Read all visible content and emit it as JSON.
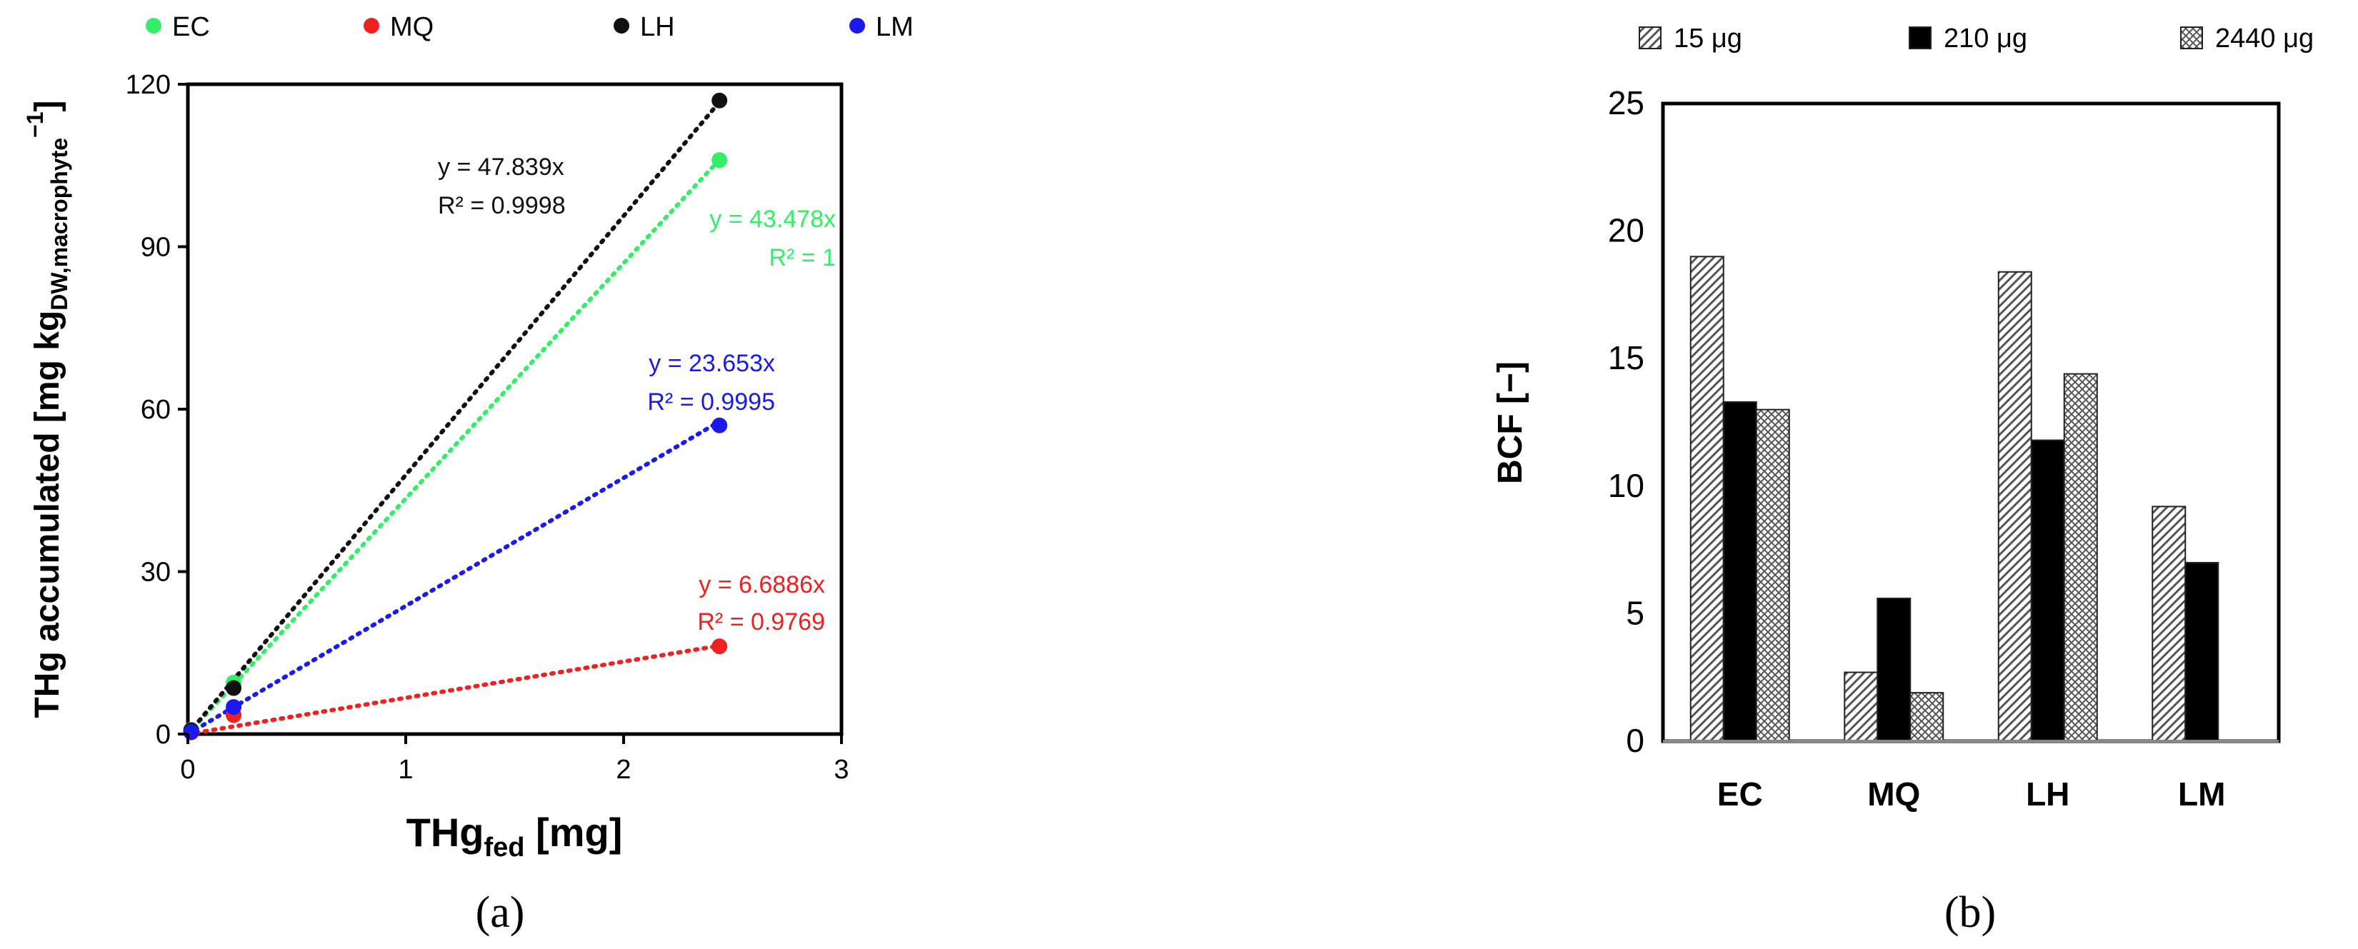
{
  "chart_data": [
    {
      "type": "scatter",
      "panel_label": "(a)",
      "xlabel": {
        "main": "THg",
        "sub": "fed",
        "rest": " [mg]"
      },
      "ylabel": {
        "main": "THg accumulated [mg kg",
        "sub": "DW,macrophyte",
        "sup": "−1",
        "close": "]"
      },
      "xlim": [
        0,
        3
      ],
      "ylim": [
        0,
        120
      ],
      "xticks": [
        0,
        1,
        2,
        3
      ],
      "yticks": [
        0,
        30,
        60,
        90,
        120
      ],
      "legend_placement": "top",
      "series": [
        {
          "name": "EC",
          "color": "#33ee66",
          "x": [
            0.015,
            0.21,
            2.44
          ],
          "y": [
            0.8,
            9.5,
            106
          ],
          "slope": 43.478,
          "equation": "y = 43.478x",
          "r2": "R² = 1"
        },
        {
          "name": "MQ",
          "color": "#ee2020",
          "x": [
            0.015,
            0.21,
            2.44
          ],
          "y": [
            0.3,
            3.5,
            16.2
          ],
          "slope": 6.6886,
          "equation": "y = 6.6886x",
          "r2": "R² = 0.9769"
        },
        {
          "name": "LH",
          "color": "#111111",
          "x": [
            0.015,
            0.21,
            2.44
          ],
          "y": [
            0.7,
            8.5,
            117
          ],
          "slope": 47.839,
          "equation": "y = 47.839x",
          "r2": "R² = 0.9998"
        },
        {
          "name": "LM",
          "color": "#1a1aee",
          "x": [
            0.015,
            0.21,
            2.44
          ],
          "y": [
            0.4,
            5,
            57
          ],
          "slope": 23.653,
          "equation": "y = 23.653x",
          "r2": "R² = 0.9995"
        }
      ]
    },
    {
      "type": "bar",
      "panel_label": "(b)",
      "ylabel": "BCF [−]",
      "ylim": [
        0,
        25
      ],
      "yticks": [
        0,
        5,
        10,
        15,
        20,
        25
      ],
      "categories": [
        "EC",
        "MQ",
        "LH",
        "LM"
      ],
      "legend_placement": "top",
      "series": [
        {
          "name": "15 μg",
          "pattern": "diagonal",
          "values": [
            19.0,
            2.7,
            18.4,
            9.2
          ]
        },
        {
          "name": "210 μg",
          "pattern": "solid",
          "values": [
            13.3,
            5.6,
            11.8,
            7.0
          ]
        },
        {
          "name": "2440 μg",
          "pattern": "crosshatch",
          "values": [
            13.0,
            1.9,
            14.4,
            null
          ]
        }
      ]
    }
  ]
}
